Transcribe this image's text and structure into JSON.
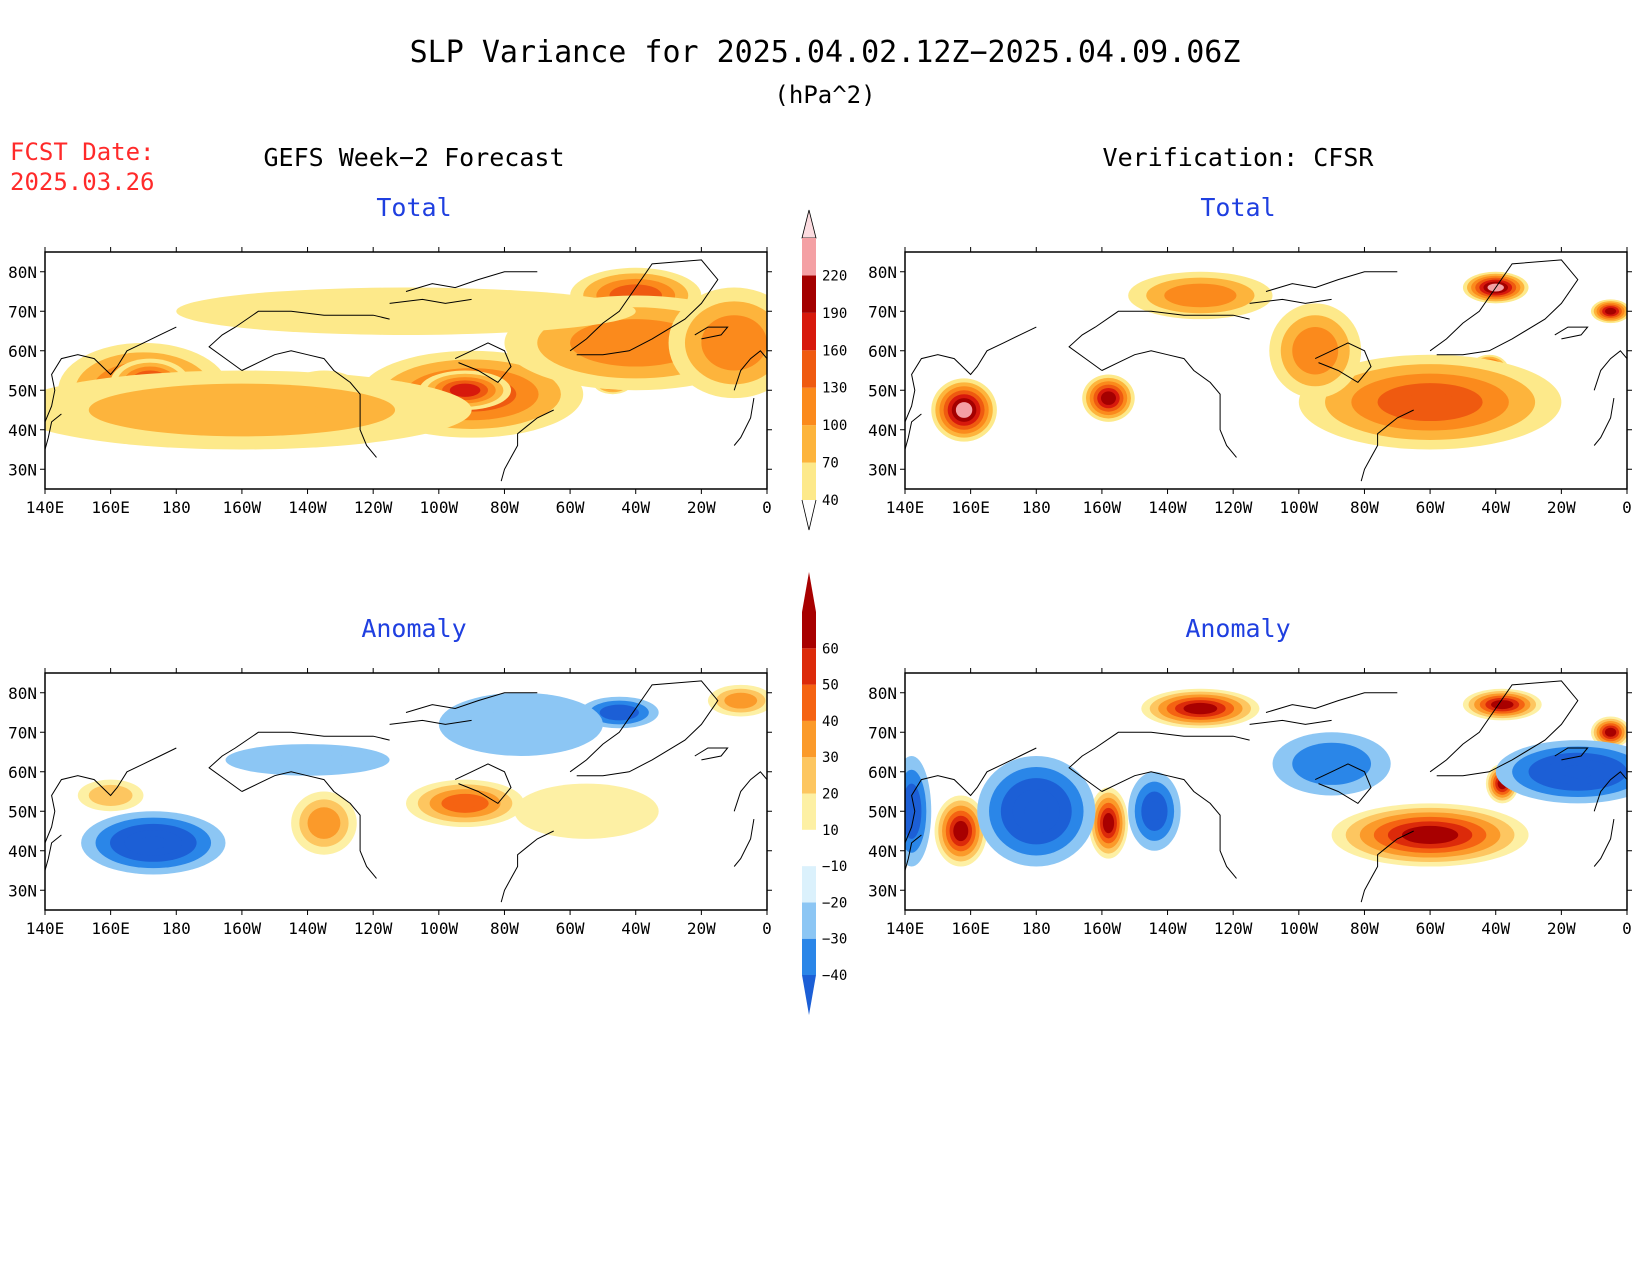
{
  "header": {
    "title": "SLP Variance for 2025.04.02.12Z−2025.04.09.06Z",
    "units": "(hPa^2)",
    "fcst_label": "FCST Date:",
    "fcst_date": "2025.03.26"
  },
  "columns": {
    "left": "GEFS Week−2 Forecast",
    "right": "Verification: CFSR"
  },
  "panels": {
    "top_left": "Total",
    "top_right": "Total",
    "bottom_left": "Anomaly",
    "bottom_right": "Anomaly"
  },
  "axes": {
    "lat_ticks": [
      "80N",
      "70N",
      "60N",
      "50N",
      "40N",
      "30N"
    ],
    "lon_ticks": [
      "140E",
      "160E",
      "180",
      "160W",
      "140W",
      "120W",
      "100W",
      "80W",
      "60W",
      "40W",
      "20W",
      "0"
    ]
  },
  "colorbars": {
    "total": {
      "labels": [
        "40",
        "70",
        "100",
        "130",
        "160",
        "190",
        "220"
      ],
      "colors": [
        "#ffffff",
        "#fde98a",
        "#fdb43c",
        "#fb8a1c",
        "#ef5a10",
        "#d7190c",
        "#a40000",
        "#f4a0a4",
        "#fcdce0"
      ]
    },
    "anomaly": {
      "labels": [
        "−40",
        "−30",
        "−20",
        "−10",
        "10",
        "20",
        "30",
        "40",
        "50",
        "60"
      ],
      "colors": [
        "#1c5fd6",
        "#2a86e8",
        "#8cc6f4",
        "#dbf1fc",
        "#ffffff",
        "#fdf0a4",
        "#fdc660",
        "#fb9a2a",
        "#f56312",
        "#dc2a0a",
        "#a80000"
      ]
    }
  },
  "map_fields": {
    "gefs_total": [
      {
        "lon": 170,
        "lat": 50,
        "rx": 26,
        "ry": 12,
        "value": 150
      },
      {
        "lon": 172,
        "lat": 52,
        "rx": 12,
        "ry": 6,
        "value": 175
      },
      {
        "lon": 225,
        "lat": 47,
        "rx": 14,
        "ry": 8,
        "value": 105
      },
      {
        "lon": 270,
        "lat": 49,
        "rx": 34,
        "ry": 11,
        "value": 150
      },
      {
        "lon": 268,
        "lat": 50,
        "rx": 14,
        "ry": 5,
        "value": 170
      },
      {
        "lon": 313,
        "lat": 52,
        "rx": 6,
        "ry": 3,
        "value": 175
      },
      {
        "lon": 320,
        "lat": 74,
        "rx": 20,
        "ry": 7,
        "value": 130
      },
      {
        "lon": 320,
        "lat": 62,
        "rx": 40,
        "ry": 12,
        "value": 100
      },
      {
        "lon": 200,
        "lat": 45,
        "rx": 70,
        "ry": 10,
        "value": 75
      },
      {
        "lon": 250,
        "lat": 70,
        "rx": 70,
        "ry": 6,
        "value": 55
      },
      {
        "lon": 350,
        "lat": 62,
        "rx": 20,
        "ry": 14,
        "value": 100
      }
    ],
    "cfsr_total": [
      {
        "lon": 158,
        "lat": 45,
        "rx": 10,
        "ry": 8,
        "value": 240
      },
      {
        "lon": 202,
        "lat": 48,
        "rx": 8,
        "ry": 6,
        "value": 215
      },
      {
        "lon": 300,
        "lat": 44,
        "rx": 22,
        "ry": 6,
        "value": 230
      },
      {
        "lon": 318,
        "lat": 55,
        "rx": 6,
        "ry": 4,
        "value": 230
      },
      {
        "lon": 318,
        "lat": 43,
        "rx": 6,
        "ry": 4,
        "value": 230
      },
      {
        "lon": 320,
        "lat": 76,
        "rx": 10,
        "ry": 4,
        "value": 240
      },
      {
        "lon": 355,
        "lat": 70,
        "rx": 6,
        "ry": 3,
        "value": 200
      },
      {
        "lon": 230,
        "lat": 74,
        "rx": 22,
        "ry": 6,
        "value": 120
      },
      {
        "lon": 300,
        "lat": 47,
        "rx": 40,
        "ry": 12,
        "value": 140
      },
      {
        "lon": 265,
        "lat": 60,
        "rx": 14,
        "ry": 12,
        "value": 100
      }
    ],
    "gefs_anomaly": [
      {
        "lon": 173,
        "lat": 42,
        "rx": 22,
        "ry": 8,
        "value": -40
      },
      {
        "lon": 315,
        "lat": 75,
        "rx": 12,
        "ry": 4,
        "value": -30
      },
      {
        "lon": 285,
        "lat": 72,
        "rx": 25,
        "ry": 8,
        "value": -15
      },
      {
        "lon": 225,
        "lat": 47,
        "rx": 10,
        "ry": 8,
        "value": 35
      },
      {
        "lon": 268,
        "lat": 52,
        "rx": 18,
        "ry": 6,
        "value": 40
      },
      {
        "lon": 160,
        "lat": 54,
        "rx": 10,
        "ry": 4,
        "value": 22
      },
      {
        "lon": 305,
        "lat": 50,
        "rx": 22,
        "ry": 7,
        "value": 18
      },
      {
        "lon": 352,
        "lat": 78,
        "rx": 10,
        "ry": 4,
        "value": 30
      },
      {
        "lon": 220,
        "lat": 63,
        "rx": 25,
        "ry": 4,
        "value": -12
      }
    ],
    "cfsr_anomaly": [
      {
        "lon": 157,
        "lat": 45,
        "rx": 8,
        "ry": 9,
        "value": 70
      },
      {
        "lon": 202,
        "lat": 47,
        "rx": 6,
        "ry": 9,
        "value": 70
      },
      {
        "lon": 230,
        "lat": 76,
        "rx": 18,
        "ry": 5,
        "value": 70
      },
      {
        "lon": 322,
        "lat": 77,
        "rx": 12,
        "ry": 4,
        "value": 70
      },
      {
        "lon": 355,
        "lat": 70,
        "rx": 6,
        "ry": 4,
        "value": 60
      },
      {
        "lon": 300,
        "lat": 44,
        "rx": 30,
        "ry": 8,
        "value": 70
      },
      {
        "lon": 322,
        "lat": 57,
        "rx": 5,
        "ry": 5,
        "value": 60
      },
      {
        "lon": 180,
        "lat": 50,
        "rx": 18,
        "ry": 14,
        "value": -45
      },
      {
        "lon": 270,
        "lat": 62,
        "rx": 18,
        "ry": 8,
        "value": -25
      },
      {
        "lon": 345,
        "lat": 60,
        "rx": 25,
        "ry": 8,
        "value": -40
      },
      {
        "lon": 142,
        "lat": 50,
        "rx": 6,
        "ry": 14,
        "value": -35
      },
      {
        "lon": 216,
        "lat": 50,
        "rx": 8,
        "ry": 10,
        "value": -30
      }
    ]
  }
}
